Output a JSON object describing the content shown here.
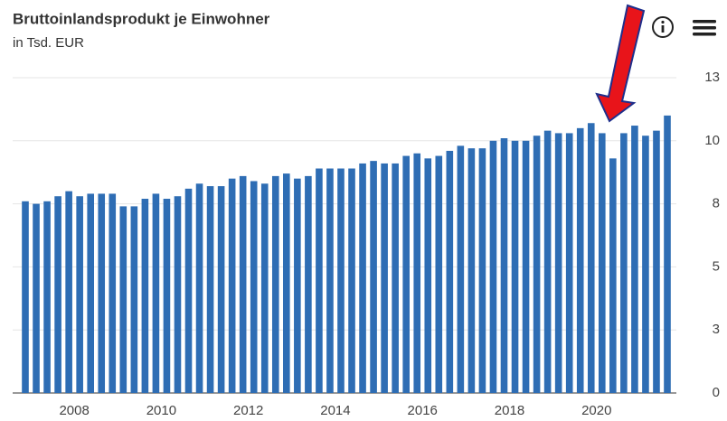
{
  "chart_data": {
    "type": "bar",
    "title": "Bruttoinlandsprodukt je Einwohner",
    "subtitle": "in Tsd. EUR",
    "categories": [
      null,
      null,
      null,
      null,
      "2008",
      null,
      null,
      null,
      null,
      null,
      null,
      null,
      "2010",
      null,
      null,
      null,
      null,
      null,
      null,
      null,
      "2012",
      null,
      null,
      null,
      null,
      null,
      null,
      null,
      "2014",
      null,
      null,
      null,
      null,
      null,
      null,
      null,
      "2016",
      null,
      null,
      null,
      null,
      null,
      null,
      null,
      "2018",
      null,
      null,
      null,
      null,
      null,
      null,
      null,
      "2020",
      null,
      null,
      null,
      null,
      null,
      null,
      null
    ],
    "values": [
      7.6,
      7.5,
      7.6,
      7.8,
      8.0,
      7.8,
      7.9,
      7.9,
      7.9,
      7.4,
      7.4,
      7.7,
      7.9,
      7.7,
      7.8,
      8.1,
      8.3,
      8.2,
      8.2,
      8.5,
      8.6,
      8.4,
      8.3,
      8.6,
      8.7,
      8.5,
      8.6,
      8.9,
      8.9,
      8.9,
      8.9,
      9.1,
      9.2,
      9.1,
      9.1,
      9.4,
      9.5,
      9.3,
      9.4,
      9.6,
      9.8,
      9.7,
      9.7,
      10.0,
      10.1,
      10.0,
      10.0,
      10.2,
      10.4,
      10.3,
      10.3,
      10.5,
      10.7,
      10.3,
      9.3,
      10.3,
      10.6,
      10.2,
      10.4,
      11.0
    ],
    "color": "#2e6db4",
    "ylim": [
      0,
      12.5
    ],
    "yticks": [
      0,
      {
        "value": 2.5,
        "label": "3"
      },
      5,
      {
        "value": 7.5,
        "label": "8"
      },
      10,
      {
        "value": 12.5,
        "label": "13"
      }
    ],
    "grid": true
  }
}
